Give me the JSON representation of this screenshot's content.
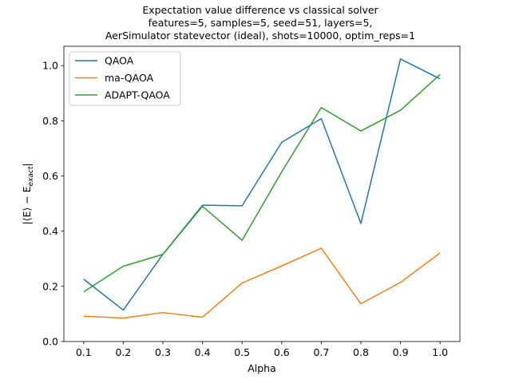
{
  "chart_data": {
    "type": "line",
    "title": [
      "Expectation value difference vs classical solver",
      "features=5, samples=5, seed=51, layers=5,",
      "AerSimulator statevector (ideal), shots=10000, optim_reps=1"
    ],
    "xlabel": "Alpha",
    "ylabel": "|⟨E⟩ − E_exact|",
    "xlim": [
      0.05,
      1.05
    ],
    "ylim": [
      0,
      1.07
    ],
    "x": [
      0.1,
      0.2,
      0.3,
      0.4,
      0.5,
      0.6,
      0.7,
      0.8,
      0.9,
      1.0
    ],
    "x_tick_labels": [
      "0.1",
      "0.2",
      "0.3",
      "0.4",
      "0.5",
      "0.6",
      "0.7",
      "0.8",
      "0.9",
      "1.0"
    ],
    "y_ticks": [
      0.0,
      0.2,
      0.4,
      0.6,
      0.8,
      1.0
    ],
    "y_tick_labels": [
      "0.0",
      "0.2",
      "0.4",
      "0.6",
      "0.8",
      "1.0"
    ],
    "legend_position": "top-left",
    "grid": false,
    "series": [
      {
        "name": "QAOA",
        "color": "#1f77b4",
        "values": [
          0.226,
          0.114,
          0.316,
          0.494,
          0.492,
          0.722,
          0.808,
          0.428,
          1.024,
          0.952
        ]
      },
      {
        "name": "ma-QAOA",
        "color": "#ff7f0e",
        "values": [
          0.092,
          0.085,
          0.105,
          0.088,
          0.212,
          0.274,
          0.338,
          0.137,
          0.214,
          0.321
        ]
      },
      {
        "name": "ADAPT-QAOA",
        "color": "#2ca02c",
        "values": [
          0.18,
          0.273,
          0.316,
          0.49,
          0.367,
          0.615,
          0.848,
          0.763,
          0.838,
          0.968
        ]
      }
    ]
  }
}
